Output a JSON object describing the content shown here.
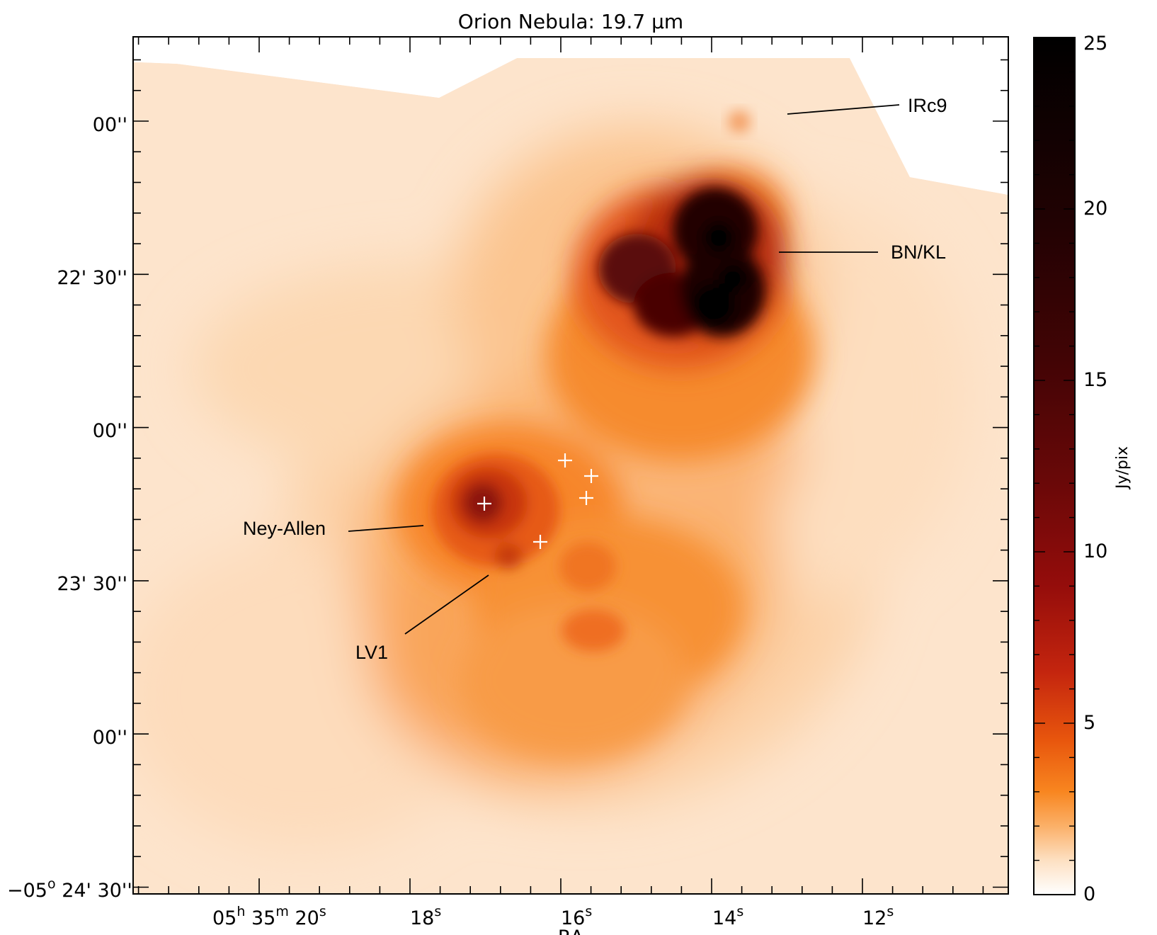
{
  "chart_data": {
    "type": "heatmap",
    "title": "Orion Nebula: 19.7 μm",
    "xlabel": "RA",
    "ylabel": "",
    "x_ticks": [
      {
        "main": "05",
        "sup1": "h",
        "mid": " 35",
        "sup2": "m",
        "end": " 20",
        "sup3": "s"
      },
      {
        "main": "18",
        "sup1": "s"
      },
      {
        "main": "16",
        "sup1": "s"
      },
      {
        "main": "14",
        "sup1": "s"
      },
      {
        "main": "12",
        "sup1": "s"
      }
    ],
    "y_ticks": [
      {
        "main": "00''"
      },
      {
        "main": "22' 30''"
      },
      {
        "main": "00''"
      },
      {
        "main": "23' 30''"
      },
      {
        "main": "00''"
      },
      {
        "main": "−05",
        "sup1": "o",
        "end": " 24' 30''"
      }
    ],
    "colorbar": {
      "label": "Jy/pix",
      "range": [
        0,
        25
      ],
      "ticks": [
        "0",
        "5",
        "10",
        "15",
        "20",
        "25"
      ],
      "colors": [
        "#ffffff",
        "#fbc48a",
        "#f77a12",
        "#c8220f",
        "#7a0a08",
        "#2a0203",
        "#000000"
      ]
    },
    "annotations": [
      {
        "label": "IRc9"
      },
      {
        "label": "BN/KL"
      },
      {
        "label": "Ney-Allen"
      },
      {
        "label": "LV1"
      }
    ],
    "markers": [
      "+",
      "+",
      "+",
      "+",
      "+"
    ],
    "features": [
      {
        "name": "BN/KL",
        "peak_jy_per_pix": 25
      },
      {
        "name": "Ney-Allen",
        "peak_jy_per_pix": 9
      },
      {
        "name": "IRc9",
        "peak_jy_per_pix": 2
      }
    ]
  }
}
